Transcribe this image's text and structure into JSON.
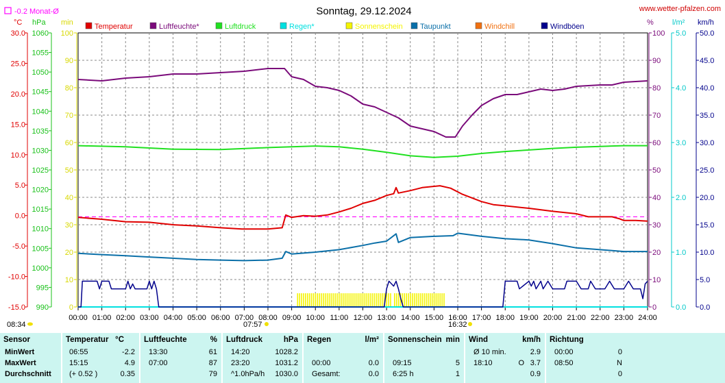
{
  "header": {
    "title": "Sonntag, 29.12.2024",
    "site": "www.wetter-pfalzen.com",
    "month_avg_label": "-0.2 Monat-Ø",
    "units": {
      "celsius": "°C",
      "hpa": "hPa",
      "minutes": "min",
      "percent": "%",
      "rain": "l/m²",
      "kmh": "km/h"
    }
  },
  "colors": {
    "temperature": "#e00000",
    "humidity": "#7a0a7a",
    "pressure": "#20e020",
    "rain": "#00e0e0",
    "sunshine": "#f4f400",
    "dewpoint": "#0a6fa8",
    "windchill": "#f07010",
    "gusts": "#00008b",
    "month_avg": "#ff00ff",
    "stats_bg": "#ccf5f0"
  },
  "legend": [
    {
      "label": "Temperatur",
      "color_key": "temperature"
    },
    {
      "label": "Luftfeuchte*",
      "color_key": "humidity"
    },
    {
      "label": "Luftdruck",
      "color_key": "pressure"
    },
    {
      "label": "Regen*",
      "color_key": "rain"
    },
    {
      "label": "Sonnenschein",
      "color_key": "sunshine"
    },
    {
      "label": "Taupunkt",
      "color_key": "dewpoint"
    },
    {
      "label": "Windchill",
      "color_key": "windchill"
    },
    {
      "label": "Windböen",
      "color_key": "gusts"
    }
  ],
  "sun_markers": {
    "sunrise": "08:34",
    "sunshine_start": "07:57",
    "sunshine_end": "16:32"
  },
  "chart_data": {
    "type": "line",
    "x_range": [
      0,
      24
    ],
    "x_ticks": [
      "00:00",
      "01:00",
      "02:00",
      "03:00",
      "04:00",
      "05:00",
      "06:00",
      "07:00",
      "08:00",
      "09:00",
      "10:00",
      "11:00",
      "12:00",
      "13:00",
      "14:00",
      "15:00",
      "16:00",
      "17:00",
      "18:00",
      "19:00",
      "20:00",
      "21:00",
      "22:00",
      "23:00",
      "24:00"
    ],
    "axes": {
      "temperature": {
        "range": [
          -15,
          30
        ],
        "ticks": [
          "30.0",
          "25.0",
          "20.0",
          "15.0",
          "10.0",
          "5.0",
          "0.0",
          "-5.0",
          "-10.0",
          "-15.0"
        ]
      },
      "pressure": {
        "range": [
          990,
          1060
        ],
        "ticks": [
          "1060",
          "1055",
          "1050",
          "1045",
          "1040",
          "1035",
          "1030",
          "1025",
          "1020",
          "1015",
          "1010",
          "1005",
          "1000",
          "995",
          "990"
        ]
      },
      "sunshine_minutes": {
        "range": [
          0,
          100
        ],
        "ticks": [
          "100",
          "90",
          "80",
          "70",
          "60",
          "50",
          "40",
          "30",
          "20",
          "10",
          "0"
        ]
      },
      "humidity_percent": {
        "range": [
          0,
          100
        ],
        "ticks": [
          "100",
          "90",
          "80",
          "70",
          "60",
          "50",
          "40",
          "30",
          "20",
          "10",
          "0"
        ]
      },
      "rain": {
        "range": [
          0,
          5
        ],
        "ticks": [
          "5.0",
          "4.0",
          "3.0",
          "2.0",
          "1.0",
          "0.0"
        ]
      },
      "wind_kmh": {
        "range": [
          0,
          50
        ],
        "ticks": [
          "50.0",
          "45.0",
          "40.0",
          "35.0",
          "30.0",
          "25.0",
          "20.0",
          "15.0",
          "10.0",
          "5.0",
          "0.0"
        ]
      }
    },
    "month_avg_temperature": -0.2,
    "series": [
      {
        "name": "Temperatur",
        "axis": "temperature",
        "color_key": "temperature",
        "points": [
          [
            0,
            -0.3
          ],
          [
            1,
            -0.6
          ],
          [
            2,
            -1.0
          ],
          [
            3,
            -1.1
          ],
          [
            4,
            -1.5
          ],
          [
            5,
            -1.7
          ],
          [
            6,
            -2.0
          ],
          [
            6.9,
            -2.2
          ],
          [
            8,
            -2.2
          ],
          [
            8.6,
            -2.0
          ],
          [
            8.75,
            0.1
          ],
          [
            9,
            -0.3
          ],
          [
            9.5,
            0.0
          ],
          [
            10,
            -0.1
          ],
          [
            10.5,
            0.1
          ],
          [
            11,
            0.6
          ],
          [
            11.5,
            1.2
          ],
          [
            12,
            2.0
          ],
          [
            12.5,
            2.5
          ],
          [
            13,
            3.3
          ],
          [
            13.3,
            3.6
          ],
          [
            13.4,
            4.6
          ],
          [
            13.5,
            3.7
          ],
          [
            14,
            4.1
          ],
          [
            14.5,
            4.6
          ],
          [
            15,
            4.8
          ],
          [
            15.25,
            4.9
          ],
          [
            15.7,
            4.5
          ],
          [
            16.2,
            3.5
          ],
          [
            17,
            2.3
          ],
          [
            17.5,
            1.8
          ],
          [
            18,
            1.6
          ],
          [
            19,
            1.2
          ],
          [
            20,
            0.7
          ],
          [
            21,
            0.3
          ],
          [
            21.5,
            -0.2
          ],
          [
            22.5,
            -0.2
          ],
          [
            22.8,
            -0.5
          ],
          [
            23,
            -0.8
          ],
          [
            23.5,
            -0.8
          ],
          [
            24,
            -0.9
          ]
        ]
      },
      {
        "name": "Luftfeuchte*",
        "axis": "humidity_percent",
        "color_key": "humidity",
        "points": [
          [
            0,
            83
          ],
          [
            1,
            82.5
          ],
          [
            2,
            83.5
          ],
          [
            3,
            84
          ],
          [
            4,
            85
          ],
          [
            5,
            85
          ],
          [
            6,
            85.5
          ],
          [
            7,
            86
          ],
          [
            8,
            87
          ],
          [
            8.7,
            87
          ],
          [
            9,
            84
          ],
          [
            9.5,
            83
          ],
          [
            10,
            80.5
          ],
          [
            10.5,
            80
          ],
          [
            11,
            79
          ],
          [
            11.5,
            77
          ],
          [
            12,
            74
          ],
          [
            12.5,
            73
          ],
          [
            13,
            71
          ],
          [
            13.5,
            69
          ],
          [
            14,
            66
          ],
          [
            14.5,
            65
          ],
          [
            15,
            64
          ],
          [
            15.5,
            62
          ],
          [
            15.9,
            62
          ],
          [
            16.2,
            66
          ],
          [
            16.6,
            70
          ],
          [
            17,
            73.5
          ],
          [
            17.5,
            76
          ],
          [
            18,
            77.5
          ],
          [
            18.5,
            77.5
          ],
          [
            19,
            78.5
          ],
          [
            19.5,
            79.5
          ],
          [
            20,
            79
          ],
          [
            20.5,
            79.5
          ],
          [
            21,
            80.5
          ],
          [
            22,
            81
          ],
          [
            22.5,
            81
          ],
          [
            23,
            82
          ],
          [
            24,
            82.5
          ]
        ]
      },
      {
        "name": "Luftdruck",
        "axis": "pressure",
        "color_key": "pressure",
        "points": [
          [
            0,
            1031.2
          ],
          [
            2,
            1030.9
          ],
          [
            4,
            1030.3
          ],
          [
            6,
            1030.2
          ],
          [
            8,
            1030.7
          ],
          [
            10,
            1031.1
          ],
          [
            11,
            1030.9
          ],
          [
            12,
            1030.3
          ],
          [
            13,
            1029.5
          ],
          [
            14,
            1028.6
          ],
          [
            15,
            1028.2
          ],
          [
            16,
            1028.5
          ],
          [
            17,
            1029.2
          ],
          [
            18,
            1029.7
          ],
          [
            19,
            1030.1
          ],
          [
            20,
            1030.5
          ],
          [
            21,
            1030.8
          ],
          [
            22,
            1031.0
          ],
          [
            23,
            1031.2
          ],
          [
            24,
            1031.2
          ]
        ]
      },
      {
        "name": "Taupunkt",
        "axis": "temperature",
        "color_key": "dewpoint",
        "points": [
          [
            0,
            -6.2
          ],
          [
            1,
            -6.4
          ],
          [
            2,
            -6.6
          ],
          [
            3,
            -6.8
          ],
          [
            4,
            -7.0
          ],
          [
            5,
            -7.2
          ],
          [
            6,
            -7.3
          ],
          [
            7,
            -7.4
          ],
          [
            8,
            -7.3
          ],
          [
            8.6,
            -7.0
          ],
          [
            8.75,
            -5.9
          ],
          [
            9,
            -6.3
          ],
          [
            10,
            -6.0
          ],
          [
            11,
            -5.6
          ],
          [
            12,
            -4.9
          ],
          [
            12.5,
            -4.5
          ],
          [
            13,
            -4.2
          ],
          [
            13.4,
            -3.0
          ],
          [
            13.5,
            -4.4
          ],
          [
            14,
            -3.6
          ],
          [
            15,
            -3.4
          ],
          [
            15.8,
            -3.3
          ],
          [
            16,
            -2.9
          ],
          [
            17,
            -3.4
          ],
          [
            18,
            -3.8
          ],
          [
            19,
            -4.0
          ],
          [
            20,
            -4.6
          ],
          [
            21,
            -5.3
          ],
          [
            22,
            -5.6
          ],
          [
            23,
            -5.9
          ],
          [
            24,
            -5.9
          ]
        ]
      },
      {
        "name": "Regen*",
        "axis": "rain",
        "color_key": "rain",
        "points": [
          [
            0,
            0
          ],
          [
            24,
            0
          ]
        ]
      },
      {
        "name": "Windböen",
        "axis": "wind_kmh",
        "color_key": "gusts",
        "points": [
          [
            0,
            0
          ],
          [
            0.12,
            0
          ],
          [
            0.18,
            4.7
          ],
          [
            0.8,
            4.7
          ],
          [
            0.9,
            3.3
          ],
          [
            1,
            4.7
          ],
          [
            1.3,
            4.7
          ],
          [
            1.4,
            3.3
          ],
          [
            1.8,
            3.3
          ],
          [
            2,
            3.3
          ],
          [
            2.1,
            4.7
          ],
          [
            2.2,
            3.3
          ],
          [
            2.3,
            4.2
          ],
          [
            2.4,
            3.3
          ],
          [
            2.9,
            3.3
          ],
          [
            3.0,
            4.7
          ],
          [
            3.1,
            3.3
          ],
          [
            3.2,
            4.7
          ],
          [
            3.3,
            3.3
          ],
          [
            3.4,
            0
          ],
          [
            3.5,
            0
          ],
          [
            12.9,
            0
          ],
          [
            13.0,
            3.3
          ],
          [
            13.1,
            4.7
          ],
          [
            13.3,
            3.8
          ],
          [
            13.4,
            4.7
          ],
          [
            13.5,
            3.3
          ],
          [
            13.6,
            1.5
          ],
          [
            13.7,
            0
          ],
          [
            17.9,
            0
          ],
          [
            18.0,
            4.7
          ],
          [
            18.5,
            4.7
          ],
          [
            18.6,
            3.3
          ],
          [
            19.0,
            4.7
          ],
          [
            19.1,
            3.8
          ],
          [
            19.2,
            4.7
          ],
          [
            19.3,
            3.3
          ],
          [
            19.5,
            4.7
          ],
          [
            19.6,
            3.3
          ],
          [
            19.8,
            4.7
          ],
          [
            20.0,
            3.3
          ],
          [
            20.5,
            3.3
          ],
          [
            20.6,
            4.7
          ],
          [
            21.0,
            4.7
          ],
          [
            21.2,
            3.3
          ],
          [
            21.5,
            3.3
          ],
          [
            21.6,
            4.7
          ],
          [
            21.8,
            3.3
          ],
          [
            22.2,
            3.3
          ],
          [
            22.4,
            4.7
          ],
          [
            22.6,
            3.3
          ],
          [
            23.0,
            3.3
          ],
          [
            23.2,
            4.7
          ],
          [
            23.4,
            3.3
          ],
          [
            23.7,
            3.3
          ],
          [
            23.8,
            1.5
          ],
          [
            23.9,
            4.2
          ],
          [
            24,
            4.7
          ]
        ]
      }
    ],
    "sunshine_bars": {
      "axis": "sunshine_minutes",
      "color_key": "sunshine",
      "from": 9.25,
      "to": 15.5,
      "step": 0.0834,
      "value": 5,
      "gap": [
        13.17,
        13.27
      ]
    }
  },
  "stats": {
    "columns": [
      {
        "title": "Sensor",
        "unit": "",
        "rows": [
          {
            "a": "MinWert",
            "b": "",
            "c": ""
          },
          {
            "a": "MaxWert",
            "b": "",
            "c": ""
          },
          {
            "a": "Durchschnitt",
            "b": "",
            "c": ""
          }
        ]
      },
      {
        "title": "Temperatur",
        "unit": "°C",
        "rows": [
          {
            "a": "06:55",
            "b": "",
            "c": "-2.2"
          },
          {
            "a": "15:15",
            "b": "",
            "c": "4.9"
          },
          {
            "a": "(+ 0.52 )",
            "b": "",
            "c": "0.35"
          }
        ]
      },
      {
        "title": "Luftfeuchte",
        "unit": "%",
        "rows": [
          {
            "a": "13:30",
            "b": "",
            "c": "61"
          },
          {
            "a": "07:00",
            "b": "",
            "c": "87"
          },
          {
            "a": "",
            "b": "",
            "c": "79"
          }
        ]
      },
      {
        "title": "Luftdruck",
        "unit": "hPa",
        "rows": [
          {
            "a": "14:20",
            "b": "",
            "c": "1028.2"
          },
          {
            "a": "23:20",
            "b": "",
            "c": "1031.2"
          },
          {
            "a": "^1.0hPa/h",
            "b": "",
            "c": "1030.0"
          }
        ]
      },
      {
        "title": "Regen",
        "unit": "l/m²",
        "rows": [
          {
            "a": "",
            "b": "",
            "c": ""
          },
          {
            "a": "00:00",
            "b": "",
            "c": "0.0"
          },
          {
            "a": "Gesamt:",
            "b": "",
            "c": "0.0"
          }
        ]
      },
      {
        "title": "Sonnenschein",
        "unit": "min",
        "rows": [
          {
            "a": "",
            "b": "",
            "c": ""
          },
          {
            "a": "09:15",
            "b": "",
            "c": "5"
          },
          {
            "a": "6:25 h",
            "b": "",
            "c": "1"
          }
        ]
      },
      {
        "title": "Wind",
        "unit": "km/h",
        "rows": [
          {
            "a": "Ø 10 min.",
            "b": "",
            "c": "2.9"
          },
          {
            "a": "18:10",
            "b": "O",
            "c": "3.7"
          },
          {
            "a": "",
            "b": "",
            "c": "0.9"
          }
        ]
      },
      {
        "title": "Richtung",
        "unit": "",
        "rows": [
          {
            "a": "00:00",
            "b": "",
            "c": "0"
          },
          {
            "a": "08:50",
            "b": "",
            "c": "N"
          },
          {
            "a": "",
            "b": "",
            "c": "0"
          }
        ]
      }
    ]
  }
}
